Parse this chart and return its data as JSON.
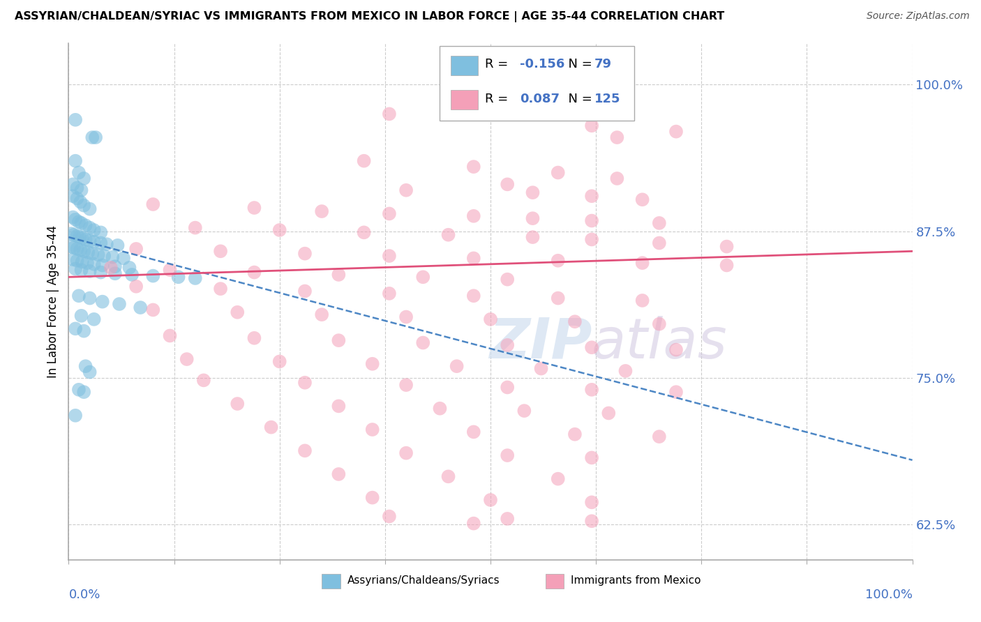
{
  "title": "ASSYRIAN/CHALDEAN/SYRIAC VS IMMIGRANTS FROM MEXICO IN LABOR FORCE | AGE 35-44 CORRELATION CHART",
  "source": "Source: ZipAtlas.com",
  "ylabel": "In Labor Force | Age 35-44",
  "ylabel_right_ticks": [
    0.625,
    0.75,
    0.875,
    1.0
  ],
  "ylabel_right_labels": [
    "62.5%",
    "75.0%",
    "87.5%",
    "100.0%"
  ],
  "xmin": 0.0,
  "xmax": 1.0,
  "ymin": 0.595,
  "ymax": 1.035,
  "legend_blue_r": "-0.156",
  "legend_blue_n": "79",
  "legend_pink_r": "0.087",
  "legend_pink_n": "125",
  "blue_color": "#7fbfdf",
  "pink_color": "#f4a0b8",
  "blue_line_color": "#3a7abf",
  "pink_line_color": "#e0507a",
  "background_color": "#ffffff",
  "grid_color": "#cccccc",
  "watermark": "ZIPatlas"
}
